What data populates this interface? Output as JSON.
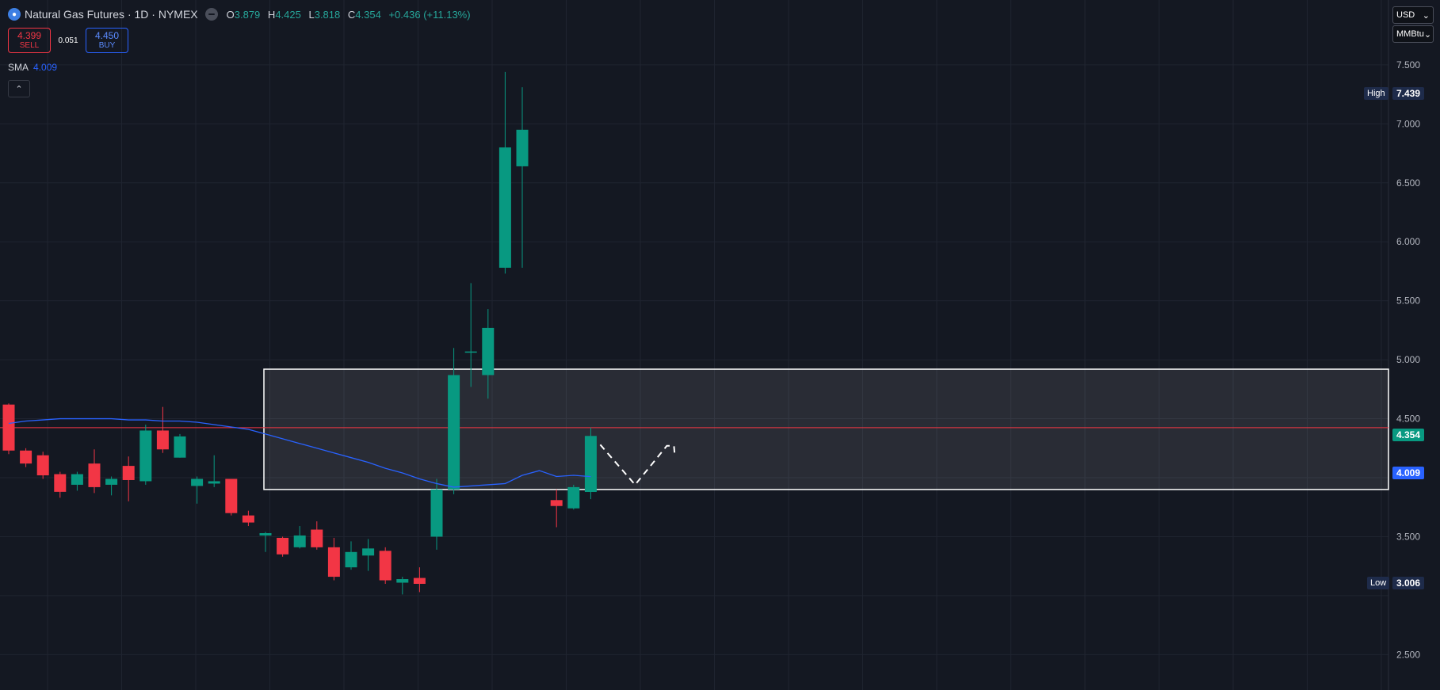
{
  "header": {
    "title": "Natural Gas Futures · 1D · NYMEX",
    "ohlc": [
      {
        "k": "O",
        "v": "3.879"
      },
      {
        "k": "H",
        "v": "4.425"
      },
      {
        "k": "L",
        "v": "3.818"
      },
      {
        "k": "C",
        "v": "4.354"
      },
      {
        "k": "",
        "v": "+0.436 (+11.13%)"
      }
    ]
  },
  "trade": {
    "sell_price": "4.399",
    "sell_label": "SELL",
    "spread": "0.051",
    "buy_price": "4.450",
    "buy_label": "BUY"
  },
  "indicator": {
    "name": "SMA",
    "value": "4.009"
  },
  "axis": {
    "currency": "USD",
    "unit": "MMBtu",
    "ticks": [
      "7.500",
      "7.000",
      "6.500",
      "6.000",
      "5.500",
      "5.000",
      "4.500",
      "3.500",
      "2.500"
    ],
    "high_label": "High",
    "high_value": "7.439",
    "low_label": "Low",
    "low_value": "3.006",
    "last_price": "4.354",
    "sma_value": "4.009"
  },
  "colors": {
    "up": "#089981",
    "down": "#f23645",
    "sma": "#2962ff",
    "background": "#141822",
    "grid": "#1f2430"
  },
  "chart_data": {
    "type": "candlestick",
    "ylim": [
      2.2,
      8.05
    ],
    "price_levels": {
      "last": 4.354,
      "sma": 4.009,
      "high": 7.439,
      "low": 3.006
    },
    "candles": [
      {
        "o": 4.62,
        "h": 4.63,
        "l": 4.2,
        "c": 4.23
      },
      {
        "o": 4.23,
        "h": 4.25,
        "l": 4.09,
        "c": 4.12
      },
      {
        "o": 4.19,
        "h": 4.22,
        "l": 3.99,
        "c": 4.02
      },
      {
        "o": 4.03,
        "h": 4.05,
        "l": 3.83,
        "c": 3.88
      },
      {
        "o": 3.94,
        "h": 4.05,
        "l": 3.89,
        "c": 4.03
      },
      {
        "o": 4.12,
        "h": 4.24,
        "l": 3.87,
        "c": 3.92
      },
      {
        "o": 3.94,
        "h": 4.01,
        "l": 3.85,
        "c": 3.99
      },
      {
        "o": 4.1,
        "h": 4.18,
        "l": 3.8,
        "c": 3.98
      },
      {
        "o": 3.97,
        "h": 4.45,
        "l": 3.94,
        "c": 4.4
      },
      {
        "o": 4.4,
        "h": 4.6,
        "l": 4.21,
        "c": 4.24
      },
      {
        "o": 4.17,
        "h": 4.37,
        "l": 4.17,
        "c": 4.35
      },
      {
        "o": 3.93,
        "h": 4.01,
        "l": 3.78,
        "c": 3.99
      },
      {
        "o": 3.95,
        "h": 4.19,
        "l": 3.92,
        "c": 3.97
      },
      {
        "o": 3.99,
        "h": 3.99,
        "l": 3.68,
        "c": 3.7
      },
      {
        "o": 3.68,
        "h": 3.72,
        "l": 3.59,
        "c": 3.62
      },
      {
        "o": 3.51,
        "h": 3.54,
        "l": 3.37,
        "c": 3.53
      },
      {
        "o": 3.49,
        "h": 3.5,
        "l": 3.33,
        "c": 3.35
      },
      {
        "o": 3.41,
        "h": 3.59,
        "l": 3.4,
        "c": 3.51
      },
      {
        "o": 3.56,
        "h": 3.63,
        "l": 3.39,
        "c": 3.41
      },
      {
        "o": 3.41,
        "h": 3.49,
        "l": 3.13,
        "c": 3.16
      },
      {
        "o": 3.24,
        "h": 3.46,
        "l": 3.22,
        "c": 3.37
      },
      {
        "o": 3.34,
        "h": 3.48,
        "l": 3.21,
        "c": 3.4
      },
      {
        "o": 3.38,
        "h": 3.41,
        "l": 3.1,
        "c": 3.13
      },
      {
        "o": 3.11,
        "h": 3.16,
        "l": 3.01,
        "c": 3.14
      },
      {
        "o": 3.15,
        "h": 3.24,
        "l": 3.03,
        "c": 3.1
      },
      {
        "o": 3.5,
        "h": 3.99,
        "l": 3.39,
        "c": 3.9
      },
      {
        "o": 3.9,
        "h": 5.1,
        "l": 3.86,
        "c": 4.87
      },
      {
        "o": 5.06,
        "h": 5.65,
        "l": 4.77,
        "c": 5.07
      },
      {
        "o": 4.87,
        "h": 5.43,
        "l": 4.67,
        "c": 5.27
      },
      {
        "o": 5.78,
        "h": 7.44,
        "l": 5.73,
        "c": 6.8
      },
      {
        "o": 6.64,
        "h": 7.31,
        "l": 5.78,
        "c": 6.95
      },
      null,
      {
        "o": 3.81,
        "h": 3.9,
        "l": 3.58,
        "c": 3.76
      },
      {
        "o": 3.74,
        "h": 3.94,
        "l": 3.73,
        "c": 3.92
      },
      {
        "o": 3.879,
        "h": 4.425,
        "l": 3.818,
        "c": 4.354
      }
    ],
    "sma": [
      4.46,
      4.48,
      4.49,
      4.5,
      4.5,
      4.5,
      4.5,
      4.49,
      4.49,
      4.48,
      4.48,
      4.47,
      4.45,
      4.43,
      4.41,
      4.37,
      4.33,
      4.29,
      4.25,
      4.21,
      4.17,
      4.13,
      4.08,
      4.04,
      3.99,
      3.95,
      3.92,
      3.93,
      3.94,
      3.95,
      4.02,
      4.06,
      4.01,
      4.02,
      4.009
    ]
  }
}
